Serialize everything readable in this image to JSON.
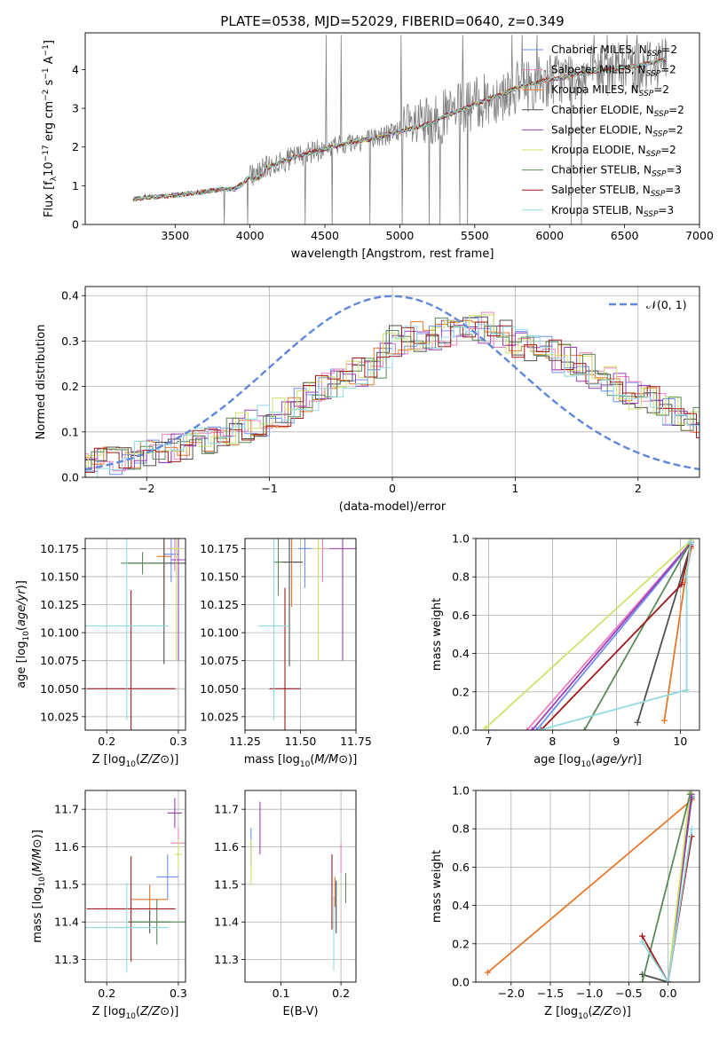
{
  "figure": {
    "title": "PLATE=0538, MJD=52029, FIBERID=0640, z=0.349"
  },
  "colors": {
    "chabrier_miles": "#6d8ff0",
    "salpeter_miles": "#ef7fc0",
    "kroupa_miles": "#e7782a",
    "chabrier_elodie": "#4f4f4f",
    "salpeter_elodie": "#9a3fb8",
    "kroupa_elodie": "#cde36a",
    "chabrier_stelib": "#5a8a5a",
    "salpeter_stelib": "#a31919",
    "kroupa_stelib": "#8fdbe0",
    "observed": "#808080",
    "normal": "#5f87dc"
  },
  "chart_data": [
    {
      "id": "spectrum",
      "type": "line",
      "xlabel": "wavelength [Angstrom, rest frame]",
      "ylabel": "Flux [f_λ 10^-17 erg cm^-2 s^-1 A^-1]",
      "xlim": [
        2900,
        7000
      ],
      "ylim": [
        0,
        4.95
      ],
      "xticks": [
        3500,
        4000,
        4500,
        5000,
        5500,
        6000,
        6500,
        7000
      ],
      "yticks": [
        0,
        1,
        2,
        3,
        4
      ],
      "grid": false,
      "legend": "top-right",
      "legend_entries": [
        {
          "base": "Chabrier MILES, N",
          "sub": "SSP",
          "tail": "=2",
          "color": "chabrier_miles"
        },
        {
          "base": "Salpeter MILES, N",
          "sub": "SSP",
          "tail": "=2",
          "color": "salpeter_miles"
        },
        {
          "base": "Kroupa MILES, N",
          "sub": "SSP",
          "tail": "=2",
          "color": "kroupa_miles"
        },
        {
          "base": "Chabrier ELODIE, N",
          "sub": "SSP",
          "tail": "=2",
          "color": "chabrier_elodie"
        },
        {
          "base": "Salpeter ELODIE, N",
          "sub": "SSP",
          "tail": "=2",
          "color": "salpeter_elodie"
        },
        {
          "base": "Kroupa ELODIE, N",
          "sub": "SSP",
          "tail": "=2",
          "color": "kroupa_elodie"
        },
        {
          "base": "Chabrier STELIB, N",
          "sub": "SSP",
          "tail": "=3",
          "color": "chabrier_stelib"
        },
        {
          "base": "Salpeter STELIB, N",
          "sub": "SSP",
          "tail": "=3",
          "color": "salpeter_stelib"
        },
        {
          "base": "Kroupa STELIB, N",
          "sub": "SSP",
          "tail": "=3",
          "color": "kroupa_stelib"
        }
      ],
      "continuum": {
        "x": [
          3220,
          3300,
          3400,
          3500,
          3600,
          3700,
          3800,
          3900,
          3950,
          4000,
          4100,
          4200,
          4300,
          4400,
          4500,
          4600,
          4700,
          4800,
          4900,
          5000,
          5100,
          5200,
          5300,
          5400,
          5500,
          5600,
          5700,
          5800,
          5900,
          6000,
          6100,
          6200,
          6300,
          6400,
          6500,
          6600,
          6700,
          6780
        ],
        "y": [
          0.65,
          0.7,
          0.72,
          0.75,
          0.8,
          0.85,
          0.9,
          0.92,
          1.05,
          1.25,
          1.45,
          1.6,
          1.75,
          1.85,
          1.95,
          2.05,
          2.15,
          2.2,
          2.3,
          2.4,
          2.5,
          2.6,
          2.8,
          2.95,
          3.1,
          3.25,
          3.4,
          3.55,
          3.65,
          3.75,
          3.8,
          3.9,
          3.95,
          4.0,
          4.05,
          4.1,
          4.2,
          4.25
        ]
      }
    },
    {
      "id": "residuals",
      "type": "line",
      "xlabel": "(data-model)/error",
      "ylabel": "Normed distribution",
      "xlim": [
        -2.5,
        2.5
      ],
      "ylim": [
        0,
        0.42
      ],
      "xticks": [
        -2,
        -1,
        0,
        1,
        2
      ],
      "yticks": [
        0.0,
        0.1,
        0.2,
        0.3,
        0.4
      ],
      "grid": true,
      "legend": "top-right",
      "normal_label": "𝒩(0, 1)",
      "normal_curve": {
        "mu": 0,
        "sigma": 1
      },
      "hist_profile": {
        "x": [
          -2.5,
          -2.0,
          -1.5,
          -1.0,
          -0.5,
          -0.1,
          0.0,
          0.5,
          0.8,
          1.0,
          1.5,
          2.0,
          2.5
        ],
        "y": [
          0.03,
          0.05,
          0.08,
          0.13,
          0.2,
          0.25,
          0.3,
          0.32,
          0.33,
          0.3,
          0.25,
          0.18,
          0.12
        ]
      }
    },
    {
      "id": "age_vs_Z",
      "type": "scatter",
      "xlabel": "Z [log10(Z/Z⊙)]",
      "ylabel": "age  [log10(age/yr)]",
      "xlim": [
        0.17,
        0.31
      ],
      "ylim": [
        10.013,
        10.184
      ],
      "xticks": [
        0.2,
        0.3
      ],
      "yticks": [
        10.025,
        10.05,
        10.075,
        10.1,
        10.125,
        10.15,
        10.175
      ],
      "grid": true,
      "points": [
        {
          "x": 0.29,
          "y": 10.17,
          "xerr": 0.01,
          "yerr": 0.025,
          "color": "chabrier_miles"
        },
        {
          "x": 0.295,
          "y": 10.175,
          "xerr": 0.01,
          "yerr": 0.02,
          "color": "salpeter_miles"
        },
        {
          "x": 0.28,
          "y": 10.168,
          "xerr": 0.01,
          "yerr": 0.045,
          "color": "kroupa_miles"
        },
        {
          "x": 0.28,
          "y": 10.162,
          "xerr": 0.052,
          "yerr": 0.09,
          "color": "chabrier_elodie"
        },
        {
          "x": 0.3,
          "y": 10.165,
          "xerr": 0.01,
          "yerr": 0.09,
          "color": "salpeter_elodie"
        },
        {
          "x": 0.297,
          "y": 10.175,
          "xerr": 0.008,
          "yerr": 0.1,
          "color": "kroupa_elodie"
        },
        {
          "x": 0.25,
          "y": 10.162,
          "xerr": 0.03,
          "yerr": 0.01,
          "color": "chabrier_stelib"
        },
        {
          "x": 0.234,
          "y": 10.05,
          "xerr": 0.062,
          "yerr": 0.088,
          "color": "salpeter_stelib"
        },
        {
          "x": 0.228,
          "y": 10.106,
          "xerr": 0.058,
          "yerr": 0.084,
          "color": "kroupa_stelib"
        }
      ]
    },
    {
      "id": "age_vs_mass",
      "type": "scatter",
      "xlabel": "mass [log10(M/M⊙)]",
      "ylabel": "",
      "xlim": [
        11.25,
        11.75
      ],
      "ylim": [
        10.013,
        10.184
      ],
      "xticks": [
        11.25,
        11.5,
        11.75
      ],
      "yticks": [
        10.025,
        10.05,
        10.075,
        10.1,
        10.125,
        10.15,
        10.175
      ],
      "grid": true,
      "points": [
        {
          "x": 11.52,
          "y": 10.175,
          "xerr": 0.03,
          "yerr": 0.035,
          "color": "chabrier_miles"
        },
        {
          "x": 11.6,
          "y": 10.175,
          "xerr": 0.02,
          "yerr": 0.03,
          "color": "salpeter_miles"
        },
        {
          "x": 11.46,
          "y": 10.163,
          "xerr": 0.04,
          "yerr": 0.04,
          "color": "kroupa_miles"
        },
        {
          "x": 11.45,
          "y": 10.163,
          "xerr": 0.06,
          "yerr": 0.093,
          "color": "chabrier_elodie"
        },
        {
          "x": 11.69,
          "y": 10.175,
          "xerr": 0.06,
          "yerr": 0.1,
          "color": "salpeter_elodie"
        },
        {
          "x": 11.58,
          "y": 10.175,
          "xerr": 0.02,
          "yerr": 0.1,
          "color": "kroupa_elodie"
        },
        {
          "x": 11.4,
          "y": 10.163,
          "xerr": 0.02,
          "yerr": 0.03,
          "color": "chabrier_stelib"
        },
        {
          "x": 11.43,
          "y": 10.05,
          "xerr": 0.07,
          "yerr": 0.09,
          "color": "salpeter_stelib"
        },
        {
          "x": 11.38,
          "y": 10.106,
          "xerr": 0.07,
          "yerr": 0.084,
          "color": "kroupa_stelib"
        }
      ]
    },
    {
      "id": "mass_weight_vs_age",
      "type": "line",
      "xlabel": "age  [log10(age/yr)]",
      "ylabel": "mass weight",
      "xlim": [
        6.8,
        10.3
      ],
      "ylim": [
        0,
        1
      ],
      "xticks": [
        7,
        8,
        9,
        10
      ],
      "yticks": [
        0.0,
        0.2,
        0.4,
        0.6,
        0.8,
        1.0
      ],
      "grid": true,
      "series": [
        {
          "color": "chabrier_miles",
          "x": [
            7.75,
            10.16
          ],
          "y": [
            0,
            0.97
          ]
        },
        {
          "color": "salpeter_miles",
          "x": [
            7.6,
            10.17
          ],
          "y": [
            0,
            0.98
          ]
        },
        {
          "color": "kroupa_miles",
          "x": [
            9.75,
            10.07,
            10.17
          ],
          "y": [
            0.05,
            0.77,
            0.95
          ]
        },
        {
          "color": "chabrier_elodie",
          "x": [
            9.33,
            10.16
          ],
          "y": [
            0.04,
            0.96
          ]
        },
        {
          "color": "salpeter_elodie",
          "x": [
            7.68,
            10.17
          ],
          "y": [
            0,
            0.98
          ]
        },
        {
          "color": "kroupa_elodie",
          "x": [
            6.95,
            10.17
          ],
          "y": [
            0.01,
            0.99
          ]
        },
        {
          "color": "chabrier_stelib",
          "x": [
            8.5,
            10.16
          ],
          "y": [
            0,
            0.98
          ]
        },
        {
          "color": "salpeter_stelib",
          "x": [
            7.82,
            10.02,
            10.16
          ],
          "y": [
            0,
            0.76,
            0.96
          ]
        },
        {
          "color": "kroupa_stelib",
          "x": [
            7.8,
            10.1,
            10.1,
            10.16
          ],
          "y": [
            0,
            0.21,
            0.8,
            0.98
          ]
        }
      ]
    },
    {
      "id": "mass_vs_Z",
      "type": "scatter",
      "xlabel": "Z [log10(Z/Z⊙)]",
      "ylabel": "mass [log10(M/M⊙)]",
      "xlim": [
        0.17,
        0.31
      ],
      "ylim": [
        11.24,
        11.75
      ],
      "xticks": [
        0.2,
        0.3
      ],
      "yticks": [
        11.3,
        11.4,
        11.5,
        11.6,
        11.7
      ],
      "grid": true,
      "points": [
        {
          "x": 0.285,
          "y": 11.52,
          "xerr": 0.015,
          "yerr": 0.06,
          "color": "chabrier_miles"
        },
        {
          "x": 0.3,
          "y": 11.61,
          "xerr": 0.01,
          "yerr": 0.04,
          "color": "salpeter_miles"
        },
        {
          "x": 0.26,
          "y": 11.46,
          "xerr": 0.025,
          "yerr": 0.04,
          "color": "kroupa_miles"
        },
        {
          "x": 0.26,
          "y": 11.4,
          "xerr": 0.03,
          "yerr": 0.03,
          "color": "chabrier_elodie"
        },
        {
          "x": 0.295,
          "y": 11.69,
          "xerr": 0.01,
          "yerr": 0.04,
          "color": "salpeter_elodie"
        },
        {
          "x": 0.3,
          "y": 11.58,
          "xerr": 0.005,
          "yerr": 0.04,
          "color": "kroupa_elodie"
        },
        {
          "x": 0.27,
          "y": 11.4,
          "xerr": 0.04,
          "yerr": 0.06,
          "color": "chabrier_stelib"
        },
        {
          "x": 0.234,
          "y": 11.435,
          "xerr": 0.062,
          "yerr": 0.14,
          "color": "salpeter_stelib"
        },
        {
          "x": 0.228,
          "y": 11.385,
          "xerr": 0.058,
          "yerr": 0.12,
          "color": "kroupa_stelib"
        }
      ]
    },
    {
      "id": "mass_vs_ebv",
      "type": "scatter",
      "xlabel": "E(B-V)",
      "ylabel": "",
      "xlim": [
        0.04,
        0.225
      ],
      "ylim": [
        11.24,
        11.75
      ],
      "xticks": [
        0.1,
        0.2
      ],
      "yticks": [
        11.3,
        11.4,
        11.5,
        11.6,
        11.7
      ],
      "grid": true,
      "points": [
        {
          "x": 0.05,
          "y": 11.6,
          "xerr": 0,
          "yerr": 0.05,
          "color": "chabrier_miles"
        },
        {
          "x": 0.2,
          "y": 11.57,
          "xerr": 0,
          "yerr": 0.04,
          "color": "salpeter_miles"
        },
        {
          "x": 0.19,
          "y": 11.48,
          "xerr": 0,
          "yerr": 0.04,
          "color": "kroupa_miles"
        },
        {
          "x": 0.192,
          "y": 11.44,
          "xerr": 0,
          "yerr": 0.07,
          "color": "chabrier_elodie"
        },
        {
          "x": 0.065,
          "y": 11.65,
          "xerr": 0,
          "yerr": 0.07,
          "color": "salpeter_elodie"
        },
        {
          "x": 0.05,
          "y": 11.56,
          "xerr": 0,
          "yerr": 0.06,
          "color": "kroupa_elodie"
        },
        {
          "x": 0.208,
          "y": 11.49,
          "xerr": 0,
          "yerr": 0.04,
          "color": "chabrier_stelib"
        },
        {
          "x": 0.185,
          "y": 11.48,
          "xerr": 0,
          "yerr": 0.1,
          "color": "salpeter_stelib"
        },
        {
          "x": 0.188,
          "y": 11.37,
          "xerr": 0,
          "yerr": 0.1,
          "color": "kroupa_stelib"
        }
      ]
    },
    {
      "id": "mass_weight_vs_Z",
      "type": "line",
      "xlabel": "Z [log10(Z/Z⊙)]",
      "ylabel": "mass weight",
      "xlim": [
        -2.45,
        0.4
      ],
      "ylim": [
        0,
        1
      ],
      "xticks": [
        -2.0,
        -1.5,
        -1.0,
        -0.5,
        0.0
      ],
      "yticks": [
        0.0,
        0.2,
        0.4,
        0.6,
        0.8,
        1.0
      ],
      "grid": true,
      "series": [
        {
          "color": "chabrier_miles",
          "x": [
            0.0,
            0.3
          ],
          "y": [
            0,
            0.97
          ]
        },
        {
          "color": "salpeter_miles",
          "x": [
            0.0,
            0.3
          ],
          "y": [
            0,
            0.98
          ]
        },
        {
          "color": "kroupa_miles",
          "x": [
            -2.3,
            0.3
          ],
          "y": [
            0.05,
            0.95
          ]
        },
        {
          "color": "chabrier_elodie",
          "x": [
            -0.33,
            0.0,
            0.3
          ],
          "y": [
            0.04,
            0,
            0.96
          ]
        },
        {
          "color": "salpeter_elodie",
          "x": [
            0.0,
            0.3
          ],
          "y": [
            0,
            0.98
          ]
        },
        {
          "color": "kroupa_elodie",
          "x": [
            0.0,
            0.28
          ],
          "y": [
            0,
            0.99
          ]
        },
        {
          "color": "chabrier_stelib",
          "x": [
            -0.33,
            0.28
          ],
          "y": [
            0,
            0.98
          ]
        },
        {
          "color": "salpeter_stelib",
          "x": [
            -0.33,
            0.0,
            0.3
          ],
          "y": [
            0.24,
            0,
            0.76
          ]
        },
        {
          "color": "kroupa_stelib",
          "x": [
            -0.33,
            0.0,
            0.3
          ],
          "y": [
            0.21,
            0,
            0.8
          ]
        }
      ]
    }
  ]
}
